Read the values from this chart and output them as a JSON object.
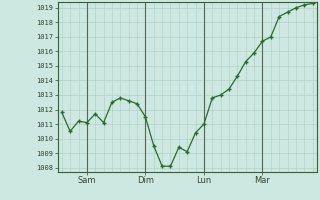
{
  "x_values": [
    0,
    1,
    2,
    3,
    4,
    5,
    6,
    7,
    8,
    9,
    10,
    11,
    12,
    13,
    14,
    15,
    16,
    17,
    18,
    19,
    20,
    21,
    22,
    23,
    24,
    25,
    26,
    27,
    28,
    29,
    30
  ],
  "y_values": [
    1011.8,
    1010.5,
    1011.2,
    1011.1,
    1011.7,
    1011.1,
    1012.5,
    1012.8,
    1012.6,
    1012.4,
    1011.5,
    1009.5,
    1008.1,
    1008.1,
    1009.4,
    1009.1,
    1010.4,
    1011.0,
    1012.8,
    1013.0,
    1013.4,
    1014.3,
    1015.3,
    1015.9,
    1016.7,
    1017.0,
    1018.4,
    1018.7,
    1019.0,
    1019.2,
    1019.3
  ],
  "xtick_positions": [
    3,
    10,
    17,
    24
  ],
  "xtick_labels": [
    "Sam",
    "Dim",
    "Lun",
    "Mar"
  ],
  "vline_positions": [
    3,
    10,
    17,
    24
  ],
  "ytick_min": 1008,
  "ytick_max": 1019,
  "ytick_step": 1,
  "line_color": "#2d6a2d",
  "marker_color": "#2d6a2d",
  "bg_color": "#cce8e0",
  "grid_color_major": "#aaccc4",
  "grid_color_minor": "#bcd8d0",
  "vline_color": "#556655",
  "axis_color": "#3a5c3a",
  "tick_label_color": "#334433",
  "figsize": [
    3.2,
    2.0
  ],
  "dpi": 100
}
